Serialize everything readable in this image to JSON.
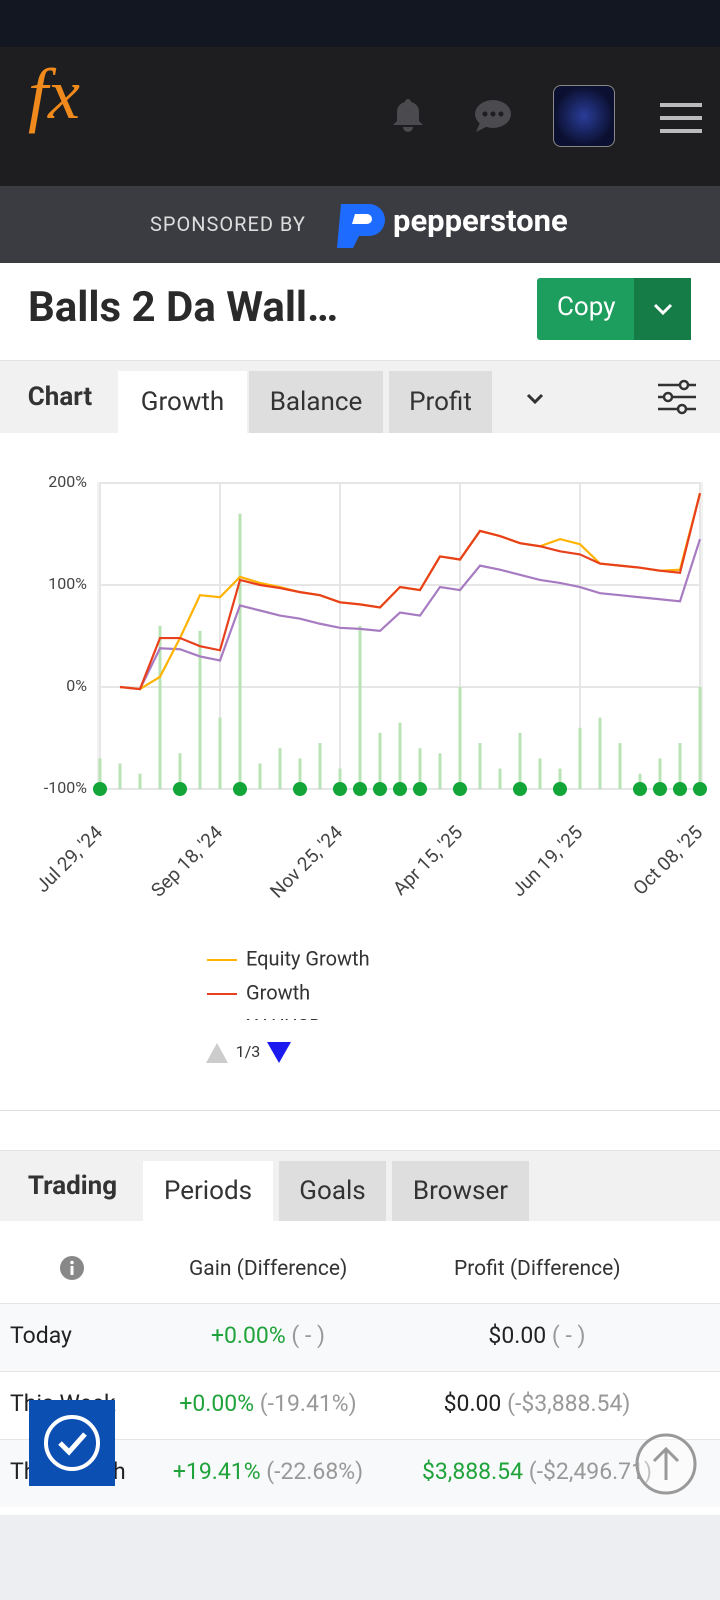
{
  "header": {
    "logo": "fx"
  },
  "sponsor": {
    "prefix": "SPONSORED BY",
    "brand": "pepperstone"
  },
  "title": "Balls 2 Da Wall…",
  "copy_button": "Copy",
  "chart_tabs": {
    "label": "Chart",
    "tabs": [
      "Growth",
      "Balance",
      "Profit"
    ]
  },
  "chart_data": {
    "type": "line",
    "categories": [
      "Jul 29, '24",
      null,
      null,
      null,
      null,
      null,
      "Sep 18, '24",
      null,
      null,
      null,
      null,
      null,
      "Nov 25, '24",
      null,
      null,
      null,
      null,
      null,
      "Apr 15, '25",
      null,
      null,
      null,
      null,
      null,
      "Jun 19, '25",
      null,
      null,
      null,
      null,
      null,
      "Oct 08, '25"
    ],
    "series": [
      {
        "name": "Equity Growth",
        "color": "#ffb300",
        "values": [
          null,
          0,
          -2,
          10,
          48,
          90,
          88,
          108,
          102,
          98,
          93,
          90,
          83,
          81,
          78,
          98,
          95,
          128,
          125,
          153,
          148,
          141,
          138,
          145,
          140,
          121,
          119,
          117,
          114,
          115,
          190
        ]
      },
      {
        "name": "Growth",
        "color": "#e8401c",
        "values": [
          null,
          0,
          -2,
          48,
          48,
          40,
          36,
          105,
          100,
          97,
          93,
          90,
          83,
          81,
          78,
          98,
          95,
          128,
          125,
          153,
          148,
          141,
          138,
          133,
          130,
          121,
          119,
          117,
          114,
          112,
          190
        ]
      },
      {
        "name": "XAUUSD",
        "color": "#a77bc2",
        "values": [
          null,
          0,
          -2,
          38,
          37,
          30,
          26,
          80,
          75,
          70,
          67,
          62,
          58,
          57,
          55,
          73,
          70,
          98,
          95,
          119,
          115,
          110,
          105,
          102,
          98,
          92,
          90,
          88,
          86,
          84,
          145
        ]
      }
    ],
    "bars": {
      "color": "#b9e3b4",
      "values": [
        -70,
        -75,
        -85,
        60,
        -65,
        55,
        -30,
        170,
        -75,
        -60,
        -70,
        -55,
        -80,
        60,
        -45,
        -35,
        -60,
        -65,
        0,
        -55,
        -80,
        -45,
        -70,
        -80,
        -40,
        -30,
        -55,
        -85,
        -70,
        -55,
        0
      ]
    },
    "markers": {
      "color": "#13a538",
      "values": [
        -100,
        null,
        null,
        null,
        -100,
        null,
        null,
        -100,
        null,
        null,
        -100,
        null,
        -100,
        -100,
        -100,
        -100,
        -100,
        null,
        -100,
        null,
        null,
        -100,
        null,
        -100,
        null,
        null,
        null,
        -100,
        -100,
        -100,
        -100
      ]
    },
    "ylim": [
      -100,
      200
    ],
    "yticks": [
      {
        "value": -100,
        "label": "-100%"
      },
      {
        "value": 0,
        "label": "0%"
      },
      {
        "value": 100,
        "label": "100%"
      },
      {
        "value": 200,
        "label": "200%"
      }
    ],
    "grid": true,
    "legend_pager": "1/3"
  },
  "section_tabs": {
    "label": "Trading",
    "tabs": [
      "Periods",
      "Goals",
      "Browser"
    ]
  },
  "table": {
    "headers": [
      "Gain (Difference)",
      "Profit (Difference)"
    ],
    "rows": [
      [
        "Today",
        "+0.00%",
        "( - )",
        "$0.00",
        "( - )"
      ],
      [
        "This Week",
        "+0.00%",
        "(-19.41%)",
        "$0.00",
        "(-$3,888.54)"
      ],
      [
        "This Month",
        "+19.41%",
        "(-22.68%)",
        "$3,888.54",
        "(-$2,496.71)"
      ]
    ]
  }
}
